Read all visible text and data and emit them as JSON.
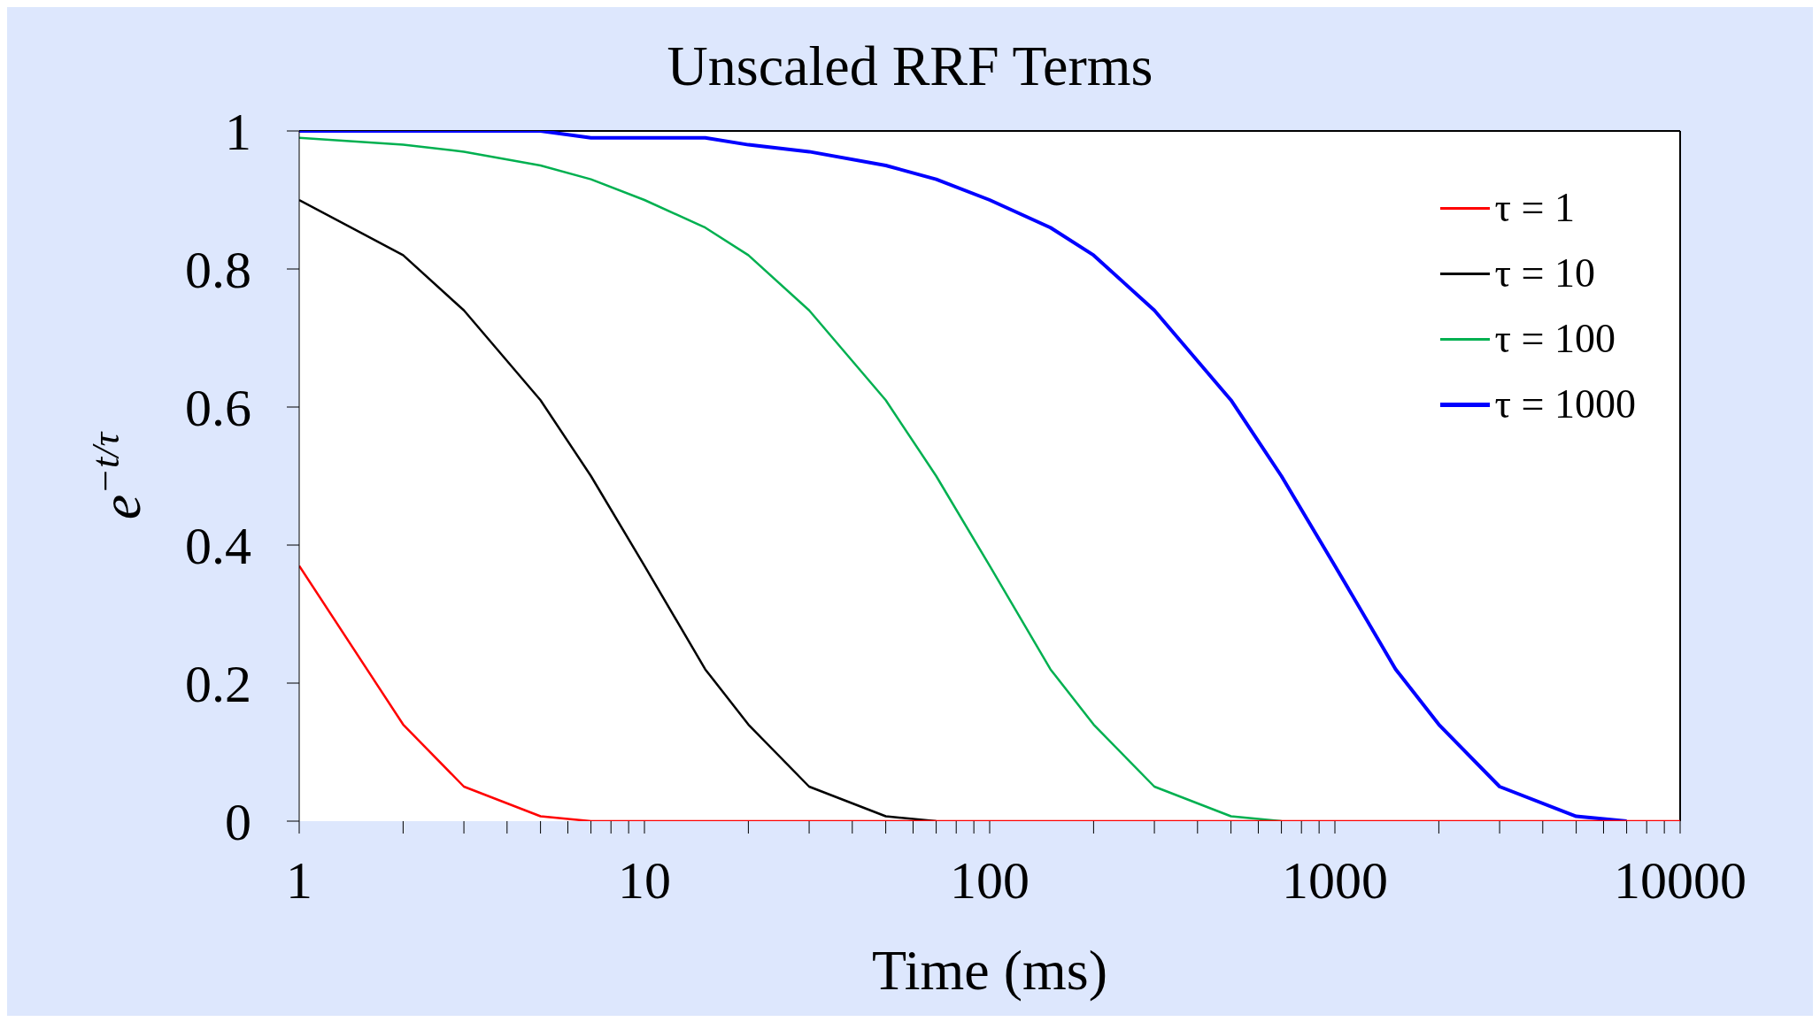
{
  "chart_data": {
    "type": "line",
    "title": "Unscaled RRF Terms",
    "xlabel": "Time (ms)",
    "ylabel": "e$^{−t/τ}$",
    "x": [
      1,
      2,
      3,
      5,
      7,
      10,
      15,
      20,
      30,
      50,
      70,
      100,
      150,
      200,
      300,
      500,
      700,
      1000,
      1500,
      2000,
      3000,
      5000,
      7000,
      10000
    ],
    "series": [
      {
        "name": "τ = 1",
        "color": "#ff0000",
        "values": [
          0.37,
          0.14,
          0.05,
          0.007,
          0,
          0,
          0,
          0,
          0,
          0,
          0,
          0,
          0,
          0,
          0,
          0,
          0,
          0,
          0,
          0,
          0,
          0,
          0,
          0
        ]
      },
      {
        "name": "τ = 10",
        "color": "#000000",
        "values": [
          0.9,
          0.82,
          0.74,
          0.61,
          0.5,
          0.37,
          0.22,
          0.14,
          0.05,
          0.007,
          0,
          null,
          null,
          null,
          null,
          null,
          null,
          null,
          null,
          null,
          null,
          null,
          null,
          null
        ]
      },
      {
        "name": "τ = 100",
        "color": "#00b050",
        "values": [
          0.99,
          0.98,
          0.97,
          0.95,
          0.93,
          0.9,
          0.86,
          0.82,
          0.74,
          0.61,
          0.5,
          0.37,
          0.22,
          0.14,
          0.05,
          0.007,
          0,
          null,
          null,
          null,
          null,
          null,
          null,
          null
        ]
      },
      {
        "name": "τ = 1000",
        "color": "#0000ff",
        "values": [
          1,
          1,
          1,
          1,
          0.99,
          0.99,
          0.99,
          0.98,
          0.97,
          0.95,
          0.93,
          0.9,
          0.86,
          0.82,
          0.74,
          0.61,
          0.5,
          0.37,
          0.22,
          0.14,
          0.05,
          0.007,
          0,
          null
        ]
      }
    ],
    "log": "x",
    "xlim": [
      1,
      10000
    ],
    "xticks": [
      1,
      {
        "value": 2,
        "label": null
      },
      {
        "value": 3,
        "label": null
      },
      {
        "value": 4,
        "label": null
      },
      {
        "value": 5,
        "label": null
      },
      {
        "value": 6,
        "label": null
      },
      {
        "value": 7,
        "label": null
      },
      {
        "value": 8,
        "label": null
      },
      {
        "value": 9,
        "label": null
      },
      10,
      {
        "value": 20,
        "label": null
      },
      {
        "value": 30,
        "label": null
      },
      {
        "value": 40,
        "label": null
      },
      {
        "value": 50,
        "label": null
      },
      {
        "value": 60,
        "label": null
      },
      {
        "value": 70,
        "label": null
      },
      {
        "value": 80,
        "label": null
      },
      {
        "value": 90,
        "label": null
      },
      100,
      {
        "value": 200,
        "label": null
      },
      {
        "value": 300,
        "label": null
      },
      {
        "value": 400,
        "label": null
      },
      {
        "value": 500,
        "label": null
      },
      {
        "value": 600,
        "label": null
      },
      {
        "value": 700,
        "label": null
      },
      {
        "value": 800,
        "label": null
      },
      {
        "value": 900,
        "label": null
      },
      1000,
      {
        "value": 2000,
        "label": null
      },
      {
        "value": 3000,
        "label": null
      },
      {
        "value": 4000,
        "label": null
      },
      {
        "value": 5000,
        "label": null
      },
      {
        "value": 6000,
        "label": null
      },
      {
        "value": 7000,
        "label": null
      },
      {
        "value": 8000,
        "label": null
      },
      {
        "value": 9000,
        "label": null
      },
      10000
    ],
    "ylim": [
      0,
      1
    ],
    "yticks": [
      0,
      0.2,
      0.4,
      0.6,
      0.8,
      1
    ],
    "grid": false,
    "legend": "top right",
    "marker": "none",
    "line_style": "solid"
  }
}
